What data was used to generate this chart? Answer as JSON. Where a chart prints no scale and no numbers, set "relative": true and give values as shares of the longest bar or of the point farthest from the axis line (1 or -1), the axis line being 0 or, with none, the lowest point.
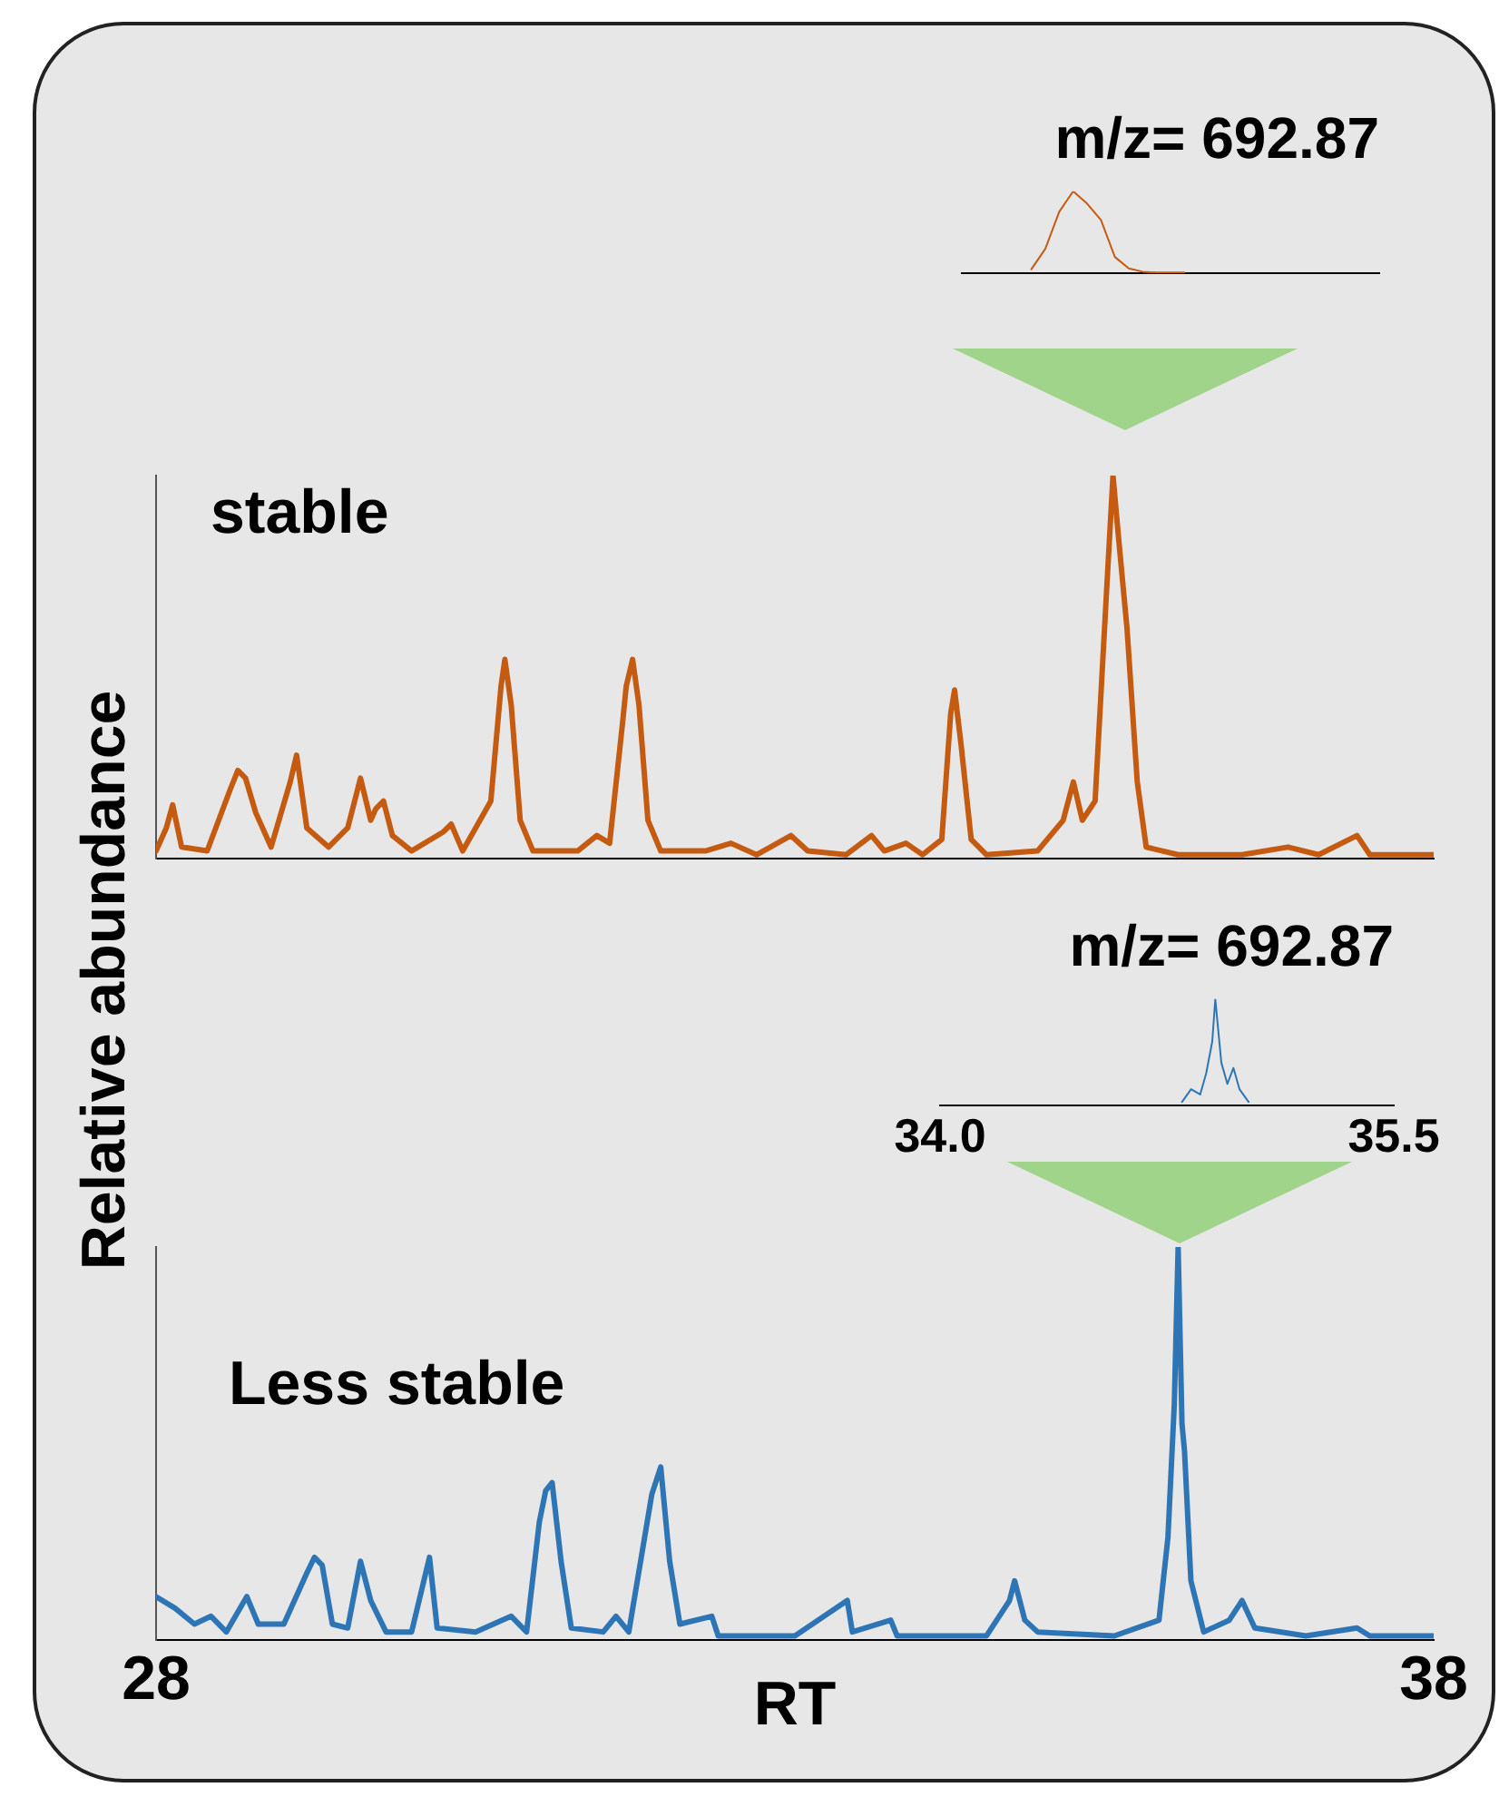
{
  "chart_data": [
    {
      "type": "line",
      "relative": true,
      "ylabel": "Relative abundance",
      "annotations": [
        "stable"
      ],
      "xlim": [
        28,
        38
      ],
      "tick_labels": false,
      "grid": false,
      "legend": false,
      "marker": "none",
      "series": [
        {
          "color": "#c55a11",
          "x": [
            28.0,
            28.08,
            28.13,
            28.2,
            28.4,
            28.58,
            28.64,
            28.7,
            28.78,
            28.9,
            29.05,
            29.1,
            29.18,
            29.35,
            29.5,
            29.6,
            29.68,
            29.72,
            29.78,
            29.85,
            30.0,
            30.25,
            30.31,
            30.4,
            30.62,
            30.7,
            30.73,
            30.78,
            30.85,
            30.95,
            31.3,
            31.45,
            31.55,
            31.65,
            31.68,
            31.73,
            31.78,
            31.85,
            31.95,
            32.3,
            32.5,
            32.7,
            32.97,
            33.1,
            33.4,
            33.6,
            33.7,
            33.87,
            34.0,
            34.15,
            34.22,
            34.25,
            34.3,
            34.38,
            34.5,
            34.9,
            35.1,
            35.18,
            35.25,
            35.35,
            35.44,
            35.49,
            35.53,
            35.6,
            35.68,
            35.75,
            36.0,
            36.5,
            36.86,
            37.1,
            37.4,
            37.5,
            38.0
          ],
          "values": [
            0.02,
            0.08,
            0.14,
            0.03,
            0.02,
            0.18,
            0.23,
            0.21,
            0.12,
            0.03,
            0.2,
            0.27,
            0.08,
            0.03,
            0.08,
            0.21,
            0.1,
            0.13,
            0.15,
            0.06,
            0.02,
            0.07,
            0.09,
            0.02,
            0.15,
            0.45,
            0.52,
            0.4,
            0.1,
            0.02,
            0.02,
            0.06,
            0.04,
            0.35,
            0.45,
            0.52,
            0.4,
            0.1,
            0.02,
            0.02,
            0.04,
            0.01,
            0.06,
            0.02,
            0.01,
            0.06,
            0.02,
            0.04,
            0.01,
            0.05,
            0.38,
            0.44,
            0.3,
            0.05,
            0.01,
            0.02,
            0.1,
            0.2,
            0.1,
            0.15,
            0.7,
            1.0,
            0.85,
            0.6,
            0.2,
            0.03,
            0.01,
            0.01,
            0.03,
            0.01,
            0.06,
            0.01,
            0.01
          ]
        }
      ]
    },
    {
      "type": "line",
      "relative": true,
      "title": "m/z= 692.87",
      "categories": [
        null,
        null,
        null,
        null,
        null,
        null,
        null,
        null,
        null,
        null,
        null,
        null,
        null,
        null,
        null,
        null,
        null,
        null,
        null,
        null,
        null,
        null,
        null,
        null,
        null,
        null,
        null,
        null,
        null,
        null,
        null
      ],
      "grid": false,
      "legend": false,
      "marker": "none",
      "series": [
        {
          "color": "#c55a11",
          "values": [
            null,
            null,
            null,
            null,
            null,
            0.05,
            0.3,
            0.75,
            1.0,
            0.85,
            0.65,
            0.2,
            0.06,
            0.02,
            0.01,
            0.01,
            0.01,
            null,
            null,
            null,
            null,
            null,
            null,
            null,
            null,
            null,
            null,
            null,
            null,
            null,
            null
          ]
        }
      ]
    },
    {
      "type": "line",
      "relative": true,
      "title": "m/z= 692.87",
      "xlim": [
        34.0,
        35.5
      ],
      "xticks": [
        {
          "value": 34,
          "label": "34.0"
        },
        35.5
      ],
      "tick_labels": "x",
      "grid": false,
      "legend": false,
      "marker": "none",
      "series": [
        {
          "color": "#2e75b6",
          "x": [
            34.8,
            34.83,
            34.86,
            34.88,
            34.9,
            34.91,
            34.93,
            34.95,
            34.97,
            34.99,
            35.02
          ],
          "values": [
            0.03,
            0.15,
            0.1,
            0.3,
            0.6,
            1.0,
            0.4,
            0.2,
            0.35,
            0.15,
            0.03
          ]
        }
      ]
    },
    {
      "type": "line",
      "relative": true,
      "xlabel": "RT",
      "annotations": [
        "Less stable"
      ],
      "xlim": [
        28,
        38
      ],
      "xticks": [
        28,
        38
      ],
      "tick_labels": "x",
      "grid": false,
      "legend": false,
      "marker": "none",
      "series": [
        {
          "color": "#2e75b6",
          "x": [
            28.0,
            28.15,
            28.3,
            28.43,
            28.55,
            28.71,
            28.8,
            29.0,
            29.18,
            29.24,
            29.3,
            29.38,
            29.5,
            29.6,
            29.68,
            29.8,
            30.0,
            30.14,
            30.2,
            30.5,
            30.78,
            30.9,
            31.0,
            31.05,
            31.1,
            31.17,
            31.25,
            31.5,
            31.6,
            31.7,
            31.88,
            31.95,
            32.02,
            32.1,
            32.35,
            32.4,
            33.0,
            33.41,
            33.45,
            33.75,
            33.8,
            34.5,
            34.68,
            34.72,
            34.8,
            34.9,
            35.5,
            35.85,
            35.92,
            35.97,
            36.0,
            36.03,
            36.05,
            36.1,
            36.2,
            36.4,
            36.5,
            36.6,
            37.0,
            37.4,
            37.5,
            38.0
          ],
          "values": [
            0.11,
            0.08,
            0.04,
            0.06,
            0.02,
            0.11,
            0.04,
            0.04,
            0.17,
            0.21,
            0.19,
            0.04,
            0.03,
            0.2,
            0.1,
            0.02,
            0.02,
            0.21,
            0.03,
            0.02,
            0.06,
            0.02,
            0.3,
            0.38,
            0.4,
            0.2,
            0.03,
            0.02,
            0.06,
            0.02,
            0.37,
            0.44,
            0.2,
            0.04,
            0.06,
            0.01,
            0.01,
            0.1,
            0.02,
            0.05,
            0.01,
            0.01,
            0.1,
            0.15,
            0.05,
            0.02,
            0.01,
            0.05,
            0.26,
            0.6,
            1.0,
            0.55,
            0.48,
            0.15,
            0.02,
            0.05,
            0.1,
            0.03,
            0.01,
            0.03,
            0.01,
            0.01
          ]
        }
      ]
    }
  ]
}
